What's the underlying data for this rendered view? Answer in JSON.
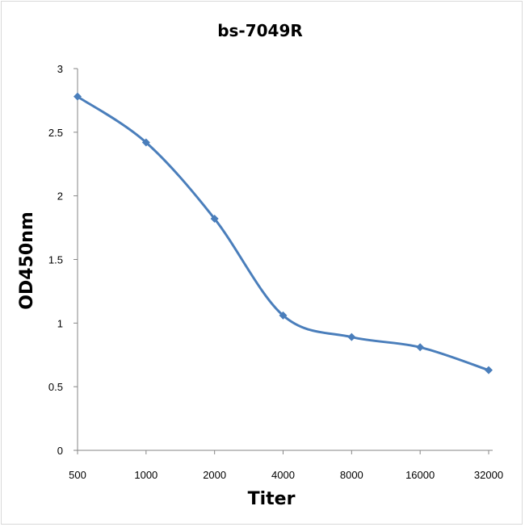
{
  "chart_data": {
    "type": "line",
    "title": "bs-7049R",
    "xlabel": "Titer",
    "ylabel": "OD450nm",
    "categories": [
      "500",
      "1000",
      "2000",
      "4000",
      "8000",
      "16000",
      "32000"
    ],
    "series": [
      {
        "values": [
          2.78,
          2.42,
          1.82,
          1.06,
          0.89,
          0.81,
          0.63
        ]
      }
    ],
    "ylim": [
      0,
      3
    ],
    "yticks": [
      "0",
      "0.5",
      "1",
      "1.5",
      "2",
      "2.5",
      "3"
    ],
    "grid": false,
    "legend": "none",
    "colors": {
      "series": "#4a7ebb",
      "axis": "#868686"
    }
  }
}
